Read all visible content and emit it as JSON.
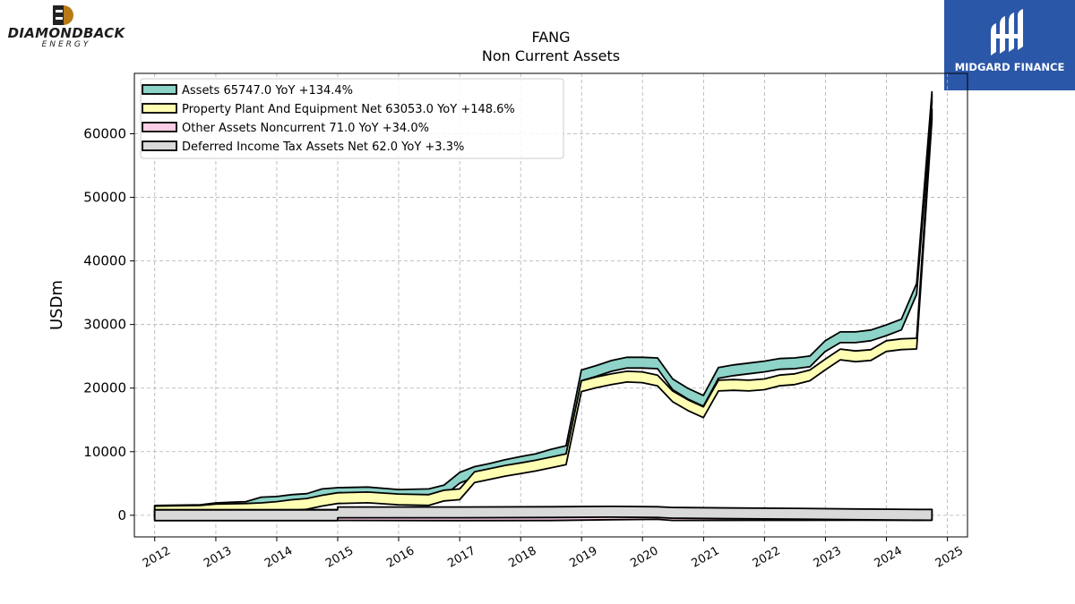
{
  "branding": {
    "left_logo_text": "DIAMONDBACK",
    "left_logo_subtext": "ENERGY",
    "right_logo_text": "MIDGARD FINANCE",
    "right_logo_bg": "#2b57a8"
  },
  "chart_data": {
    "type": "area",
    "title": "FANG",
    "subtitle": "Non Current  Assets",
    "xlabel": "",
    "ylabel": "USDm",
    "xlim": [
      "2011-09-01",
      "2025-05-01"
    ],
    "ylim": [
      -3400,
      69500
    ],
    "x_ticks": [
      "2012",
      "2013",
      "2014",
      "2015",
      "2016",
      "2017",
      "2018",
      "2019",
      "2020",
      "2021",
      "2022",
      "2023",
      "2024",
      "2025"
    ],
    "y_ticks": [
      0,
      10000,
      20000,
      30000,
      40000,
      50000,
      60000
    ],
    "grid": true,
    "legend_position": "top-left",
    "series": [
      {
        "name": "Assets  65747.0 YoY +134.4%",
        "color": "#8dd3c7",
        "points": [
          [
            "2012-01-01",
            700
          ],
          [
            "2012-09-30",
            800
          ],
          [
            "2013-01-01",
            1100
          ],
          [
            "2013-06-30",
            1300
          ],
          [
            "2013-09-30",
            2000
          ],
          [
            "2014-01-01",
            2100
          ],
          [
            "2014-03-31",
            2400
          ],
          [
            "2014-06-30",
            2550
          ],
          [
            "2014-09-30",
            3300
          ],
          [
            "2015-01-01",
            3500
          ],
          [
            "2015-06-30",
            3600
          ],
          [
            "2016-01-01",
            3200
          ],
          [
            "2016-06-30",
            3300
          ],
          [
            "2016-09-30",
            3900
          ],
          [
            "2017-01-01",
            5900
          ],
          [
            "2017-03-31",
            6800
          ],
          [
            "2017-06-30",
            7300
          ],
          [
            "2017-09-30",
            7900
          ],
          [
            "2018-01-01",
            8400
          ],
          [
            "2018-03-31",
            8800
          ],
          [
            "2018-06-30",
            9500
          ],
          [
            "2018-09-30",
            10100
          ],
          [
            "2018-12-31",
            22000
          ],
          [
            "2019-03-31",
            22700
          ],
          [
            "2019-06-30",
            23500
          ],
          [
            "2019-09-30",
            24000
          ],
          [
            "2019-12-31",
            24000
          ],
          [
            "2020-03-31",
            23900
          ],
          [
            "2020-06-30",
            20600
          ],
          [
            "2020-09-30",
            19100
          ],
          [
            "2020-12-31",
            18000
          ],
          [
            "2021-03-31",
            22400
          ],
          [
            "2021-06-30",
            22800
          ],
          [
            "2021-09-30",
            23100
          ],
          [
            "2021-12-31",
            23400
          ],
          [
            "2022-03-31",
            23800
          ],
          [
            "2022-06-30",
            23900
          ],
          [
            "2022-09-30",
            24200
          ],
          [
            "2022-12-31",
            26600
          ],
          [
            "2023-03-31",
            28000
          ],
          [
            "2023-06-30",
            28000
          ],
          [
            "2023-09-30",
            28300
          ],
          [
            "2023-12-31",
            29100
          ],
          [
            "2024-03-31",
            30000
          ],
          [
            "2024-06-30",
            35600
          ],
          [
            "2024-09-30",
            65747
          ]
        ]
      },
      {
        "name": "Property Plant And Equipment Net  63053.0 YoY +148.6%",
        "color": "#ffffb3",
        "points": [
          [
            "2012-01-01",
            600
          ],
          [
            "2012-09-30",
            700
          ],
          [
            "2013-01-01",
            900
          ],
          [
            "2013-06-30",
            1000
          ],
          [
            "2013-09-30",
            1100
          ],
          [
            "2014-01-01",
            1300
          ],
          [
            "2014-03-31",
            1600
          ],
          [
            "2014-06-30",
            1800
          ],
          [
            "2014-09-30",
            2300
          ],
          [
            "2015-01-01",
            2700
          ],
          [
            "2015-06-30",
            2800
          ],
          [
            "2016-01-01",
            2500
          ],
          [
            "2016-06-30",
            2400
          ],
          [
            "2016-09-30",
            3100
          ],
          [
            "2017-01-01",
            3300
          ],
          [
            "2017-03-31",
            6000
          ],
          [
            "2017-06-30",
            6500
          ],
          [
            "2017-09-30",
            7000
          ],
          [
            "2018-01-01",
            7400
          ],
          [
            "2018-03-31",
            7800
          ],
          [
            "2018-06-30",
            8300
          ],
          [
            "2018-09-30",
            8800
          ],
          [
            "2018-12-31",
            20300
          ],
          [
            "2019-03-31",
            20900
          ],
          [
            "2019-06-30",
            21400
          ],
          [
            "2019-09-30",
            21800
          ],
          [
            "2019-12-31",
            21700
          ],
          [
            "2020-03-31",
            21200
          ],
          [
            "2020-06-30",
            18700
          ],
          [
            "2020-09-30",
            17300
          ],
          [
            "2020-12-31",
            16200
          ],
          [
            "2021-03-31",
            20400
          ],
          [
            "2021-06-30",
            20500
          ],
          [
            "2021-09-30",
            20400
          ],
          [
            "2021-12-31",
            20600
          ],
          [
            "2022-03-31",
            21200
          ],
          [
            "2022-06-30",
            21400
          ],
          [
            "2022-09-30",
            22000
          ],
          [
            "2022-12-31",
            23700
          ],
          [
            "2023-03-31",
            25300
          ],
          [
            "2023-06-30",
            25000
          ],
          [
            "2023-09-30",
            25200
          ],
          [
            "2023-12-31",
            26600
          ],
          [
            "2024-03-31",
            26900
          ],
          [
            "2024-06-30",
            27000
          ],
          [
            "2024-09-30",
            63053
          ]
        ]
      },
      {
        "name": "Other Assets Noncurrent  71.0 YoY +34.0%",
        "color": "#fccde5",
        "points": [
          [
            "2012-01-01",
            30
          ],
          [
            "2013-01-01",
            30
          ],
          [
            "2014-01-01",
            40
          ],
          [
            "2014-12-31",
            50
          ],
          [
            "2015-01-01",
            30
          ],
          [
            "2017-01-01",
            10
          ],
          [
            "2018-06-30",
            20
          ],
          [
            "2019-06-30",
            150
          ],
          [
            "2020-03-31",
            200
          ],
          [
            "2020-06-30",
            30
          ],
          [
            "2022-01-01",
            50
          ],
          [
            "2023-06-30",
            60
          ],
          [
            "2024-06-30",
            55
          ],
          [
            "2024-09-30",
            71
          ]
        ]
      },
      {
        "name": "Deferred Income Tax Assets Net  62.0 YoY +3.3%",
        "color": "#d9d9d9",
        "points": [
          [
            "2012-01-01",
            0
          ],
          [
            "2014-12-31",
            0
          ],
          [
            "2015-01-01",
            450
          ],
          [
            "2017-01-01",
            450
          ],
          [
            "2018-06-30",
            500
          ],
          [
            "2019-06-30",
            550
          ],
          [
            "2020-03-31",
            500
          ],
          [
            "2020-06-30",
            380
          ],
          [
            "2021-06-30",
            300
          ],
          [
            "2022-06-30",
            240
          ],
          [
            "2023-06-30",
            140
          ],
          [
            "2024-06-30",
            80
          ],
          [
            "2024-09-30",
            62
          ]
        ]
      }
    ]
  }
}
